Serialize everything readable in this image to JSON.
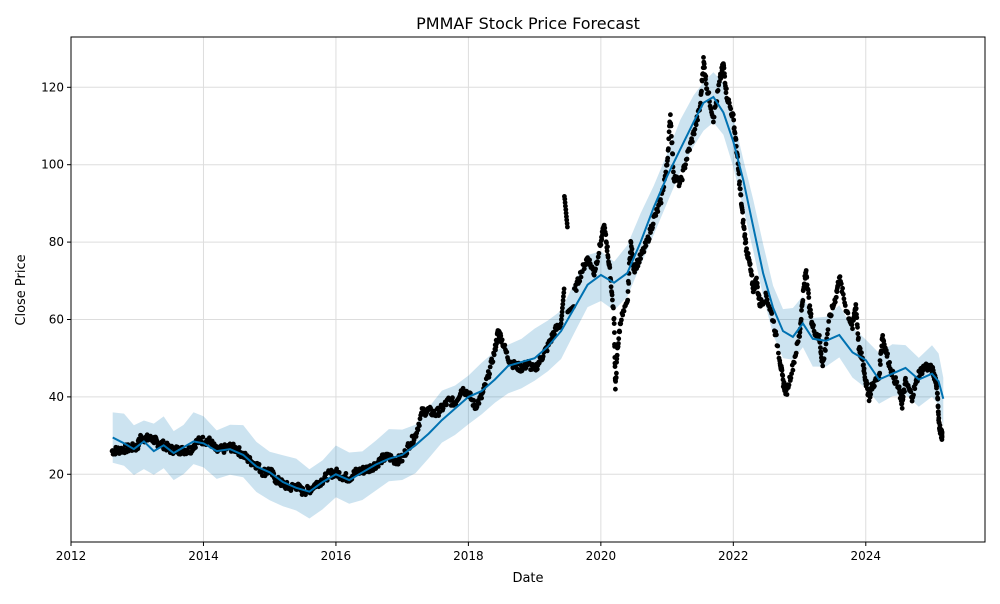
{
  "figure": {
    "title": "PMMAF Stock Price Forecast",
    "xlabel": "Date",
    "ylabel": "Close Price"
  },
  "chart_data": {
    "type": "scatter",
    "title": "PMMAF Stock Price Forecast",
    "xlabel": "Date",
    "ylabel": "Close Price",
    "x_ticks": [
      "2012",
      "2014",
      "2016",
      "2018",
      "2020",
      "2022",
      "2024"
    ],
    "x_tick_values": [
      2012,
      2014,
      2016,
      2018,
      2020,
      2022,
      2024
    ],
    "y_ticks": [
      20,
      40,
      60,
      80,
      100,
      120
    ],
    "xlim": [
      2012.0,
      2025.8
    ],
    "ylim": [
      2.5,
      133
    ],
    "grid": true,
    "colors": {
      "observed": "#000000",
      "forecast_line": "#0072B2",
      "interval_fill": "#0072B2"
    },
    "series": [
      {
        "kind": "forecast",
        "x": [
          2012.63,
          2012.8,
          2012.95,
          2013.1,
          2013.25,
          2013.4,
          2013.55,
          2013.7,
          2013.85,
          2014.0,
          2014.2,
          2014.4,
          2014.6,
          2014.8,
          2015.0,
          2015.2,
          2015.4,
          2015.6,
          2015.8,
          2016.0,
          2016.2,
          2016.4,
          2016.6,
          2016.8,
          2017.0,
          2017.2,
          2017.4,
          2017.6,
          2017.8,
          2018.0,
          2018.2,
          2018.4,
          2018.6,
          2018.8,
          2019.0,
          2019.2,
          2019.4,
          2019.6,
          2019.8,
          2020.0,
          2020.2,
          2020.4,
          2020.6,
          2020.8,
          2021.0,
          2021.2,
          2021.4,
          2021.55,
          2021.7,
          2021.85,
          2022.0,
          2022.15,
          2022.3,
          2022.45,
          2022.6,
          2022.75,
          2022.9,
          2023.05,
          2023.2,
          2023.4,
          2023.6,
          2023.8,
          2024.0,
          2024.2,
          2024.4,
          2024.6,
          2024.8,
          2025.0,
          2025.1,
          2025.17
        ],
        "y": [
          29.5,
          28.0,
          26.5,
          28.5,
          26.0,
          27.5,
          25.5,
          27.0,
          28.5,
          28.0,
          26.0,
          26.5,
          25.0,
          22.0,
          20.5,
          18.0,
          16.5,
          15.5,
          18.0,
          20.0,
          18.5,
          20.5,
          22.5,
          24.0,
          25.0,
          27.5,
          30.5,
          34.0,
          37.0,
          40.0,
          41.5,
          44.5,
          48.0,
          49.0,
          50.0,
          53.0,
          57.0,
          63.0,
          69.0,
          71.5,
          69.5,
          72.0,
          80.0,
          89.0,
          97.0,
          104.0,
          111.0,
          116.0,
          117.5,
          113.5,
          106.0,
          96.0,
          84.0,
          72.0,
          63.0,
          57.0,
          55.5,
          59.0,
          55.0,
          54.5,
          56.0,
          51.5,
          49.5,
          44.5,
          46.0,
          47.5,
          44.5,
          46.0,
          44.0,
          39.5
        ]
      },
      {
        "kind": "uncertainty_interval",
        "half_width": 6.5
      },
      {
        "kind": "observed",
        "description_free_points": [
          [
            2012.62,
            26
          ],
          [
            2012.7,
            26.2
          ],
          [
            2012.8,
            26.5
          ],
          [
            2012.9,
            26.8
          ],
          [
            2013.0,
            27.0
          ],
          [
            2013.05,
            29.5
          ],
          [
            2013.15,
            29.2
          ],
          [
            2013.25,
            29.0
          ],
          [
            2013.3,
            28.2
          ],
          [
            2013.4,
            27.6
          ],
          [
            2013.5,
            26.4
          ],
          [
            2013.6,
            26.3
          ],
          [
            2013.7,
            26.2
          ],
          [
            2013.8,
            26.3
          ],
          [
            2013.9,
            28.4
          ],
          [
            2014.0,
            28.8
          ],
          [
            2014.1,
            28.5
          ],
          [
            2014.2,
            26.0
          ],
          [
            2014.3,
            26.5
          ],
          [
            2014.4,
            27.0
          ],
          [
            2014.5,
            26.5
          ],
          [
            2014.6,
            25.0
          ],
          [
            2014.7,
            23.5
          ],
          [
            2014.8,
            22.5
          ],
          [
            2014.9,
            20.5
          ],
          [
            2015.0,
            21.0
          ],
          [
            2015.1,
            18.5
          ],
          [
            2015.2,
            17.5
          ],
          [
            2015.3,
            16.5
          ],
          [
            2015.4,
            17.0
          ],
          [
            2015.5,
            15.5
          ],
          [
            2015.6,
            16.0
          ],
          [
            2015.7,
            17.5
          ],
          [
            2015.8,
            18.5
          ],
          [
            2015.9,
            20.0
          ],
          [
            2016.0,
            20.5
          ],
          [
            2016.1,
            19.5
          ],
          [
            2016.2,
            19.0
          ],
          [
            2016.3,
            20.5
          ],
          [
            2016.4,
            21.0
          ],
          [
            2016.5,
            21.5
          ],
          [
            2016.6,
            22.5
          ],
          [
            2016.7,
            24.0
          ],
          [
            2016.8,
            24.5
          ],
          [
            2016.9,
            23.5
          ],
          [
            2017.0,
            24.0
          ],
          [
            2017.1,
            27.5
          ],
          [
            2017.2,
            30.0
          ],
          [
            2017.3,
            36.0
          ],
          [
            2017.4,
            36.5
          ],
          [
            2017.5,
            35.5
          ],
          [
            2017.6,
            37.0
          ],
          [
            2017.7,
            39.0
          ],
          [
            2017.8,
            38.5
          ],
          [
            2017.9,
            42.0
          ],
          [
            2018.0,
            41.0
          ],
          [
            2018.1,
            37.5
          ],
          [
            2018.2,
            40.0
          ],
          [
            2018.3,
            45.5
          ],
          [
            2018.4,
            52.0
          ],
          [
            2018.45,
            57.0
          ],
          [
            2018.5,
            55.0
          ],
          [
            2018.6,
            50.0
          ],
          [
            2018.7,
            48.0
          ],
          [
            2018.8,
            47.5
          ],
          [
            2018.9,
            48.5
          ],
          [
            2019.0,
            47.0
          ],
          [
            2019.1,
            50.0
          ],
          [
            2019.2,
            53.0
          ],
          [
            2019.3,
            57.0
          ],
          [
            2019.4,
            59.0
          ],
          [
            2019.45,
            92.0
          ],
          [
            2019.5,
            62.0
          ],
          [
            2019.6,
            67.0
          ],
          [
            2019.7,
            72.0
          ],
          [
            2019.8,
            76.0
          ],
          [
            2019.9,
            72.0
          ],
          [
            2020.0,
            80.0
          ],
          [
            2020.05,
            84.0
          ],
          [
            2020.1,
            78.0
          ],
          [
            2020.15,
            70.0
          ],
          [
            2020.2,
            60.0
          ],
          [
            2020.22,
            42.0
          ],
          [
            2020.25,
            52.0
          ],
          [
            2020.3,
            60.0
          ],
          [
            2020.4,
            64.0
          ],
          [
            2020.45,
            80.0
          ],
          [
            2020.5,
            73.0
          ],
          [
            2020.6,
            76.0
          ],
          [
            2020.7,
            80.0
          ],
          [
            2020.8,
            86.0
          ],
          [
            2020.9,
            90.0
          ],
          [
            2021.0,
            100.0
          ],
          [
            2021.05,
            113.0
          ],
          [
            2021.1,
            97.0
          ],
          [
            2021.2,
            95.0
          ],
          [
            2021.3,
            102.0
          ],
          [
            2021.4,
            108.0
          ],
          [
            2021.5,
            115.0
          ],
          [
            2021.55,
            127.0
          ],
          [
            2021.6,
            120.0
          ],
          [
            2021.7,
            112.0
          ],
          [
            2021.8,
            122.0
          ],
          [
            2021.85,
            126.0
          ],
          [
            2021.9,
            118.0
          ],
          [
            2022.0,
            112.0
          ],
          [
            2022.05,
            104.0
          ],
          [
            2022.1,
            94.0
          ],
          [
            2022.15,
            85.0
          ],
          [
            2022.2,
            78.0
          ],
          [
            2022.25,
            74.0
          ],
          [
            2022.3,
            68.0
          ],
          [
            2022.35,
            70.0
          ],
          [
            2022.4,
            64.0
          ],
          [
            2022.5,
            66.0
          ],
          [
            2022.6,
            60.0
          ],
          [
            2022.7,
            50.0
          ],
          [
            2022.75,
            44.0
          ],
          [
            2022.8,
            41.0
          ],
          [
            2022.9,
            48.0
          ],
          [
            2023.0,
            56.0
          ],
          [
            2023.05,
            66.0
          ],
          [
            2023.1,
            73.0
          ],
          [
            2023.15,
            63.0
          ],
          [
            2023.2,
            58.0
          ],
          [
            2023.3,
            55.0
          ],
          [
            2023.35,
            48.0
          ],
          [
            2023.45,
            60.0
          ],
          [
            2023.55,
            66.0
          ],
          [
            2023.6,
            71.0
          ],
          [
            2023.7,
            63.0
          ],
          [
            2023.8,
            58.0
          ],
          [
            2023.85,
            64.0
          ],
          [
            2023.9,
            52.0
          ],
          [
            2023.95,
            50.0
          ],
          [
            2024.0,
            44.0
          ],
          [
            2024.05,
            40.0
          ],
          [
            2024.1,
            43.0
          ],
          [
            2024.2,
            45.0
          ],
          [
            2024.25,
            56.0
          ],
          [
            2024.3,
            52.0
          ],
          [
            2024.4,
            46.0
          ],
          [
            2024.5,
            42.0
          ],
          [
            2024.55,
            38.0
          ],
          [
            2024.6,
            44.0
          ],
          [
            2024.7,
            40.0
          ],
          [
            2024.8,
            46.0
          ],
          [
            2024.9,
            48.0
          ],
          [
            2025.0,
            47.0
          ],
          [
            2025.05,
            45.0
          ],
          [
            2025.08,
            42.0
          ],
          [
            2025.1,
            34.0
          ],
          [
            2025.13,
            31.0
          ],
          [
            2025.15,
            30.0
          ]
        ]
      }
    ]
  }
}
